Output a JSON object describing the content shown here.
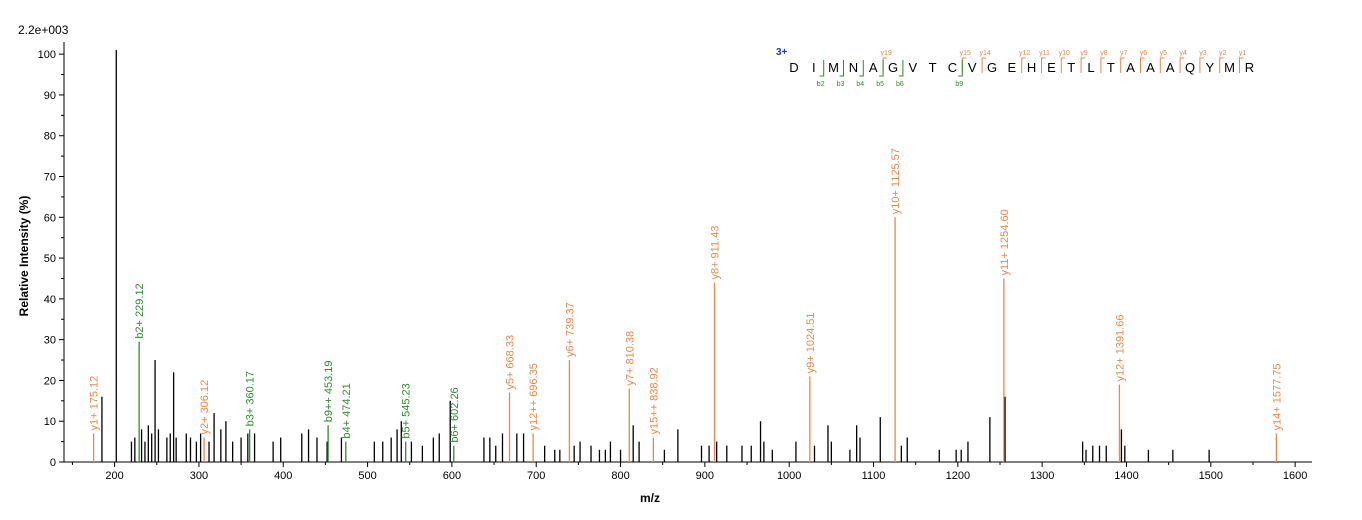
{
  "chart_data": {
    "type": "bar",
    "max_intensity_label": "2.2e+003",
    "xlabel": "m/z",
    "ylabel": "Relative   Intensity (%)",
    "xlim": [
      140,
      1620
    ],
    "ylim": [
      0,
      102
    ],
    "x_ticks": [
      200,
      300,
      400,
      500,
      600,
      700,
      800,
      900,
      1000,
      1100,
      1200,
      1300,
      1400,
      1500,
      1600
    ],
    "y_ticks": [
      0,
      10,
      20,
      30,
      40,
      50,
      60,
      70,
      80,
      90,
      100
    ],
    "colors": {
      "y_ion": "#e8884a",
      "b_ion": "#2e8b2e",
      "unlabeled": "#000000",
      "charge": "#1f3aa8"
    },
    "annotated_peaks": [
      {
        "label": "y1+ 175.12",
        "mz": 175.12,
        "intensity": 7,
        "ion": "y"
      },
      {
        "label": "b2+ 229.12",
        "mz": 229.12,
        "intensity": 29.5,
        "ion": "b"
      },
      {
        "label": "y2+ 306.12",
        "mz": 306.12,
        "intensity": 6,
        "ion": "y"
      },
      {
        "label": "b3+ 360.17",
        "mz": 360.17,
        "intensity": 8,
        "ion": "b"
      },
      {
        "label": "b9++ 453.19",
        "mz": 453.19,
        "intensity": 9,
        "ion": "b"
      },
      {
        "label": "b4+ 474.21",
        "mz": 474.21,
        "intensity": 5,
        "ion": "b"
      },
      {
        "label": "b5+ 545.23",
        "mz": 545.23,
        "intensity": 5,
        "ion": "b"
      },
      {
        "label": "b6+ 602.26",
        "mz": 602.26,
        "intensity": 4,
        "ion": "b"
      },
      {
        "label": "y5+ 668.33",
        "mz": 668.33,
        "intensity": 17,
        "ion": "y"
      },
      {
        "label": "y12++ 696.35",
        "mz": 696.35,
        "intensity": 7,
        "ion": "y"
      },
      {
        "label": "y6+ 739.37",
        "mz": 739.37,
        "intensity": 25,
        "ion": "y"
      },
      {
        "label": "y7+ 810.38",
        "mz": 810.38,
        "intensity": 18,
        "ion": "y"
      },
      {
        "label": "y15++ 838.92",
        "mz": 838.92,
        "intensity": 6,
        "ion": "y"
      },
      {
        "label": "y8+ 911.43",
        "mz": 911.43,
        "intensity": 44,
        "ion": "y"
      },
      {
        "label": "y9+ 1024.51",
        "mz": 1024.51,
        "intensity": 21,
        "ion": "y"
      },
      {
        "label": "y10+ 1125.57",
        "mz": 1125.57,
        "intensity": 60,
        "ion": "y"
      },
      {
        "label": "y11+ 1254.60",
        "mz": 1254.6,
        "intensity": 45,
        "ion": "y"
      },
      {
        "label": "y12+ 1391.66",
        "mz": 1391.66,
        "intensity": 19,
        "ion": "y"
      },
      {
        "label": "y14+ 1577.75",
        "mz": 1577.75,
        "intensity": 7,
        "ion": "y"
      }
    ],
    "unlabeled_peaks": [
      [
        185,
        16
      ],
      [
        202,
        101
      ],
      [
        220,
        5
      ],
      [
        224,
        6
      ],
      [
        232,
        8
      ],
      [
        236,
        5
      ],
      [
        240,
        9
      ],
      [
        244,
        7
      ],
      [
        248,
        25
      ],
      [
        252,
        8
      ],
      [
        262,
        6
      ],
      [
        266,
        7
      ],
      [
        270,
        22
      ],
      [
        273,
        6
      ],
      [
        285,
        7
      ],
      [
        290,
        6
      ],
      [
        297,
        5
      ],
      [
        302,
        7
      ],
      [
        312,
        5
      ],
      [
        318,
        12
      ],
      [
        326,
        8
      ],
      [
        332,
        10
      ],
      [
        340,
        5
      ],
      [
        350,
        6
      ],
      [
        358,
        7
      ],
      [
        366,
        7
      ],
      [
        388,
        5
      ],
      [
        397,
        6
      ],
      [
        422,
        7
      ],
      [
        430,
        8
      ],
      [
        440,
        6
      ],
      [
        452,
        5
      ],
      [
        469,
        6
      ],
      [
        508,
        5
      ],
      [
        518,
        5
      ],
      [
        528,
        6
      ],
      [
        535,
        8
      ],
      [
        540,
        10
      ],
      [
        552,
        5
      ],
      [
        565,
        4
      ],
      [
        578,
        6
      ],
      [
        585,
        7
      ],
      [
        598,
        15
      ],
      [
        638,
        6
      ],
      [
        645,
        6
      ],
      [
        652,
        4
      ],
      [
        660,
        7
      ],
      [
        677,
        7
      ],
      [
        685,
        7
      ],
      [
        710,
        4
      ],
      [
        722,
        3
      ],
      [
        728,
        3
      ],
      [
        745,
        4
      ],
      [
        752,
        5
      ],
      [
        765,
        4
      ],
      [
        775,
        3
      ],
      [
        782,
        3
      ],
      [
        788,
        5
      ],
      [
        800,
        3
      ],
      [
        815,
        9
      ],
      [
        822,
        5
      ],
      [
        852,
        3
      ],
      [
        868,
        8
      ],
      [
        896,
        4
      ],
      [
        905,
        4
      ],
      [
        914,
        5
      ],
      [
        926,
        4
      ],
      [
        944,
        4
      ],
      [
        955,
        4
      ],
      [
        966,
        10
      ],
      [
        970,
        5
      ],
      [
        980,
        3
      ],
      [
        1008,
        5
      ],
      [
        1030,
        4
      ],
      [
        1046,
        9
      ],
      [
        1050,
        5
      ],
      [
        1072,
        3
      ],
      [
        1080,
        9
      ],
      [
        1084,
        6
      ],
      [
        1108,
        11
      ],
      [
        1133,
        4
      ],
      [
        1140,
        6
      ],
      [
        1178,
        3
      ],
      [
        1198,
        3
      ],
      [
        1204,
        3
      ],
      [
        1212,
        5
      ],
      [
        1238,
        11
      ],
      [
        1256,
        16
      ],
      [
        1348,
        5
      ],
      [
        1352,
        3
      ],
      [
        1360,
        4
      ],
      [
        1368,
        4
      ],
      [
        1376,
        4
      ],
      [
        1394,
        8
      ],
      [
        1398,
        4
      ],
      [
        1426,
        3
      ],
      [
        1455,
        3
      ],
      [
        1498,
        3
      ]
    ],
    "sequence": {
      "charge": "3+",
      "residues": [
        "D",
        "I",
        "M",
        "N",
        "A",
        "G",
        "V",
        "T",
        "C",
        "V",
        "G",
        "E",
        "H",
        "E",
        "T",
        "L",
        "T",
        "A",
        "A",
        "A",
        "Q",
        "Y",
        "M",
        "R"
      ],
      "y_ions": [
        {
          "label": "y19",
          "pos": 5
        },
        {
          "label": "y15",
          "pos": 9
        },
        {
          "label": "y14",
          "pos": 10
        },
        {
          "label": "y12",
          "pos": 12
        },
        {
          "label": "y11",
          "pos": 13
        },
        {
          "label": "y10",
          "pos": 14
        },
        {
          "label": "y9",
          "pos": 15
        },
        {
          "label": "y8",
          "pos": 16
        },
        {
          "label": "y7",
          "pos": 17
        },
        {
          "label": "y6",
          "pos": 18
        },
        {
          "label": "y5",
          "pos": 19
        },
        {
          "label": "y4",
          "pos": 20
        },
        {
          "label": "y3",
          "pos": 21
        },
        {
          "label": "y2",
          "pos": 22
        },
        {
          "label": "y1",
          "pos": 23
        }
      ],
      "b_ions": [
        {
          "label": "b2",
          "pos": 2
        },
        {
          "label": "b3",
          "pos": 3
        },
        {
          "label": "b4",
          "pos": 4
        },
        {
          "label": "b5",
          "pos": 5
        },
        {
          "label": "b6",
          "pos": 6
        },
        {
          "label": "b9",
          "pos": 9
        }
      ]
    }
  }
}
